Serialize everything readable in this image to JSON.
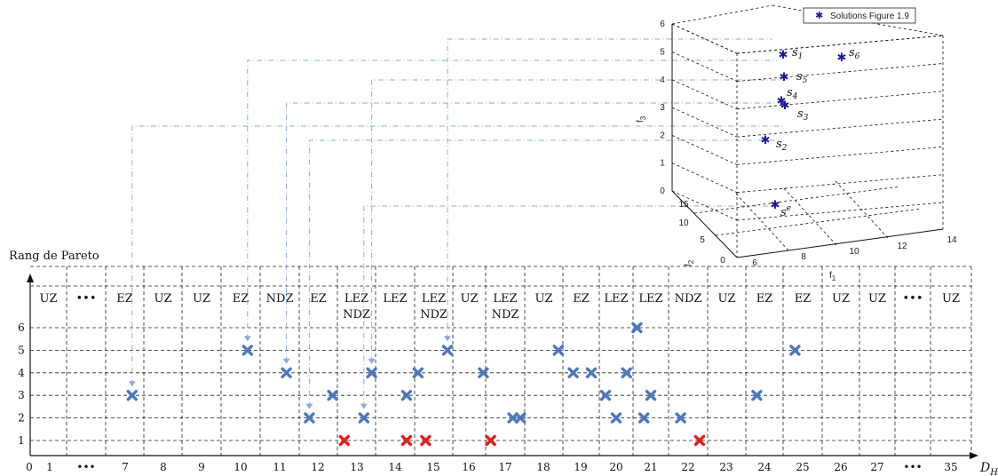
{
  "y_axis_title": "Rang de Pareto",
  "x_axis_symbol": "D",
  "x_axis_symbol_sub": "H",
  "x_ticks": [
    "0",
    "1",
    "•••",
    "7",
    "8",
    "9",
    "10",
    "11",
    "12",
    "13",
    "14",
    "15",
    "16",
    "17",
    "18",
    "19",
    "20",
    "21",
    "22",
    "23",
    "24",
    "25",
    "26",
    "27",
    "•••",
    "35"
  ],
  "y_ticks": [
    "1",
    "2",
    "3",
    "4",
    "5",
    "6"
  ],
  "zones": [
    "UZ",
    "•••",
    "EZ",
    "UZ",
    "UZ",
    "EZ",
    "NDZ",
    "EZ",
    "LEZ NDZ",
    "LEZ",
    "LEZ NDZ",
    "UZ",
    "LEZ NDZ",
    "UZ",
    "EZ",
    "LEZ",
    "LEZ",
    "NDZ",
    "UZ",
    "EZ",
    "EZ",
    "UZ",
    "UZ",
    "•••",
    "UZ"
  ],
  "colors": {
    "blue": "#4a78be",
    "red": "#e0201c",
    "connector": "#8eaad8",
    "star": "#1a1a9a"
  },
  "chart_data": {
    "type": "scatter",
    "xlabel": "D_H",
    "ylabel": "Rang de Pareto",
    "ylim": [
      0,
      6
    ],
    "grid": true,
    "series": [
      {
        "color": "blue",
        "points": [
          [
            7.2,
            3
          ],
          [
            10.2,
            5
          ],
          [
            11.2,
            4
          ],
          [
            11.8,
            2
          ],
          [
            12.4,
            3
          ],
          [
            13.2,
            2
          ],
          [
            13.4,
            4
          ],
          [
            14.3,
            3
          ],
          [
            14.6,
            4
          ],
          [
            15.4,
            5
          ],
          [
            16.4,
            4
          ],
          [
            17.2,
            2
          ],
          [
            17.4,
            2
          ],
          [
            18.4,
            5
          ],
          [
            18.8,
            4
          ],
          [
            19.3,
            4
          ],
          [
            19.7,
            3
          ],
          [
            20.0,
            2
          ],
          [
            20.3,
            4
          ],
          [
            20.6,
            6
          ],
          [
            20.8,
            2
          ],
          [
            21.0,
            3
          ],
          [
            21.8,
            2
          ],
          [
            23.8,
            3
          ],
          [
            24.8,
            5
          ]
        ]
      },
      {
        "color": "red",
        "points": [
          [
            12.7,
            1
          ],
          [
            14.3,
            1
          ],
          [
            14.8,
            1
          ],
          [
            16.6,
            1
          ],
          [
            22.3,
            1
          ]
        ]
      }
    ]
  },
  "inset_chart": {
    "legend": "Solutions Figure 1.9",
    "f1_label": "f",
    "f1_sub": "1",
    "f2_label": "f",
    "f2_sub": "2",
    "f3_label": "f",
    "f3_sub": "3",
    "z_ticks": [
      "0",
      "1",
      "2",
      "3",
      "4",
      "5",
      "6"
    ],
    "y_ticks": [
      "15",
      "10",
      "5",
      "0"
    ],
    "x_ticks": [
      "6",
      "8",
      "10",
      "12",
      "14"
    ],
    "solutions": [
      {
        "label": "s",
        "sub": "1"
      },
      {
        "label": "s",
        "sub": "6"
      },
      {
        "label": "s",
        "sub": "5"
      },
      {
        "label": "s",
        "sub": "4"
      },
      {
        "label": "s",
        "sub": "3"
      },
      {
        "label": "s",
        "sub": "2"
      },
      {
        "label": "s",
        "sup": "e"
      }
    ]
  }
}
